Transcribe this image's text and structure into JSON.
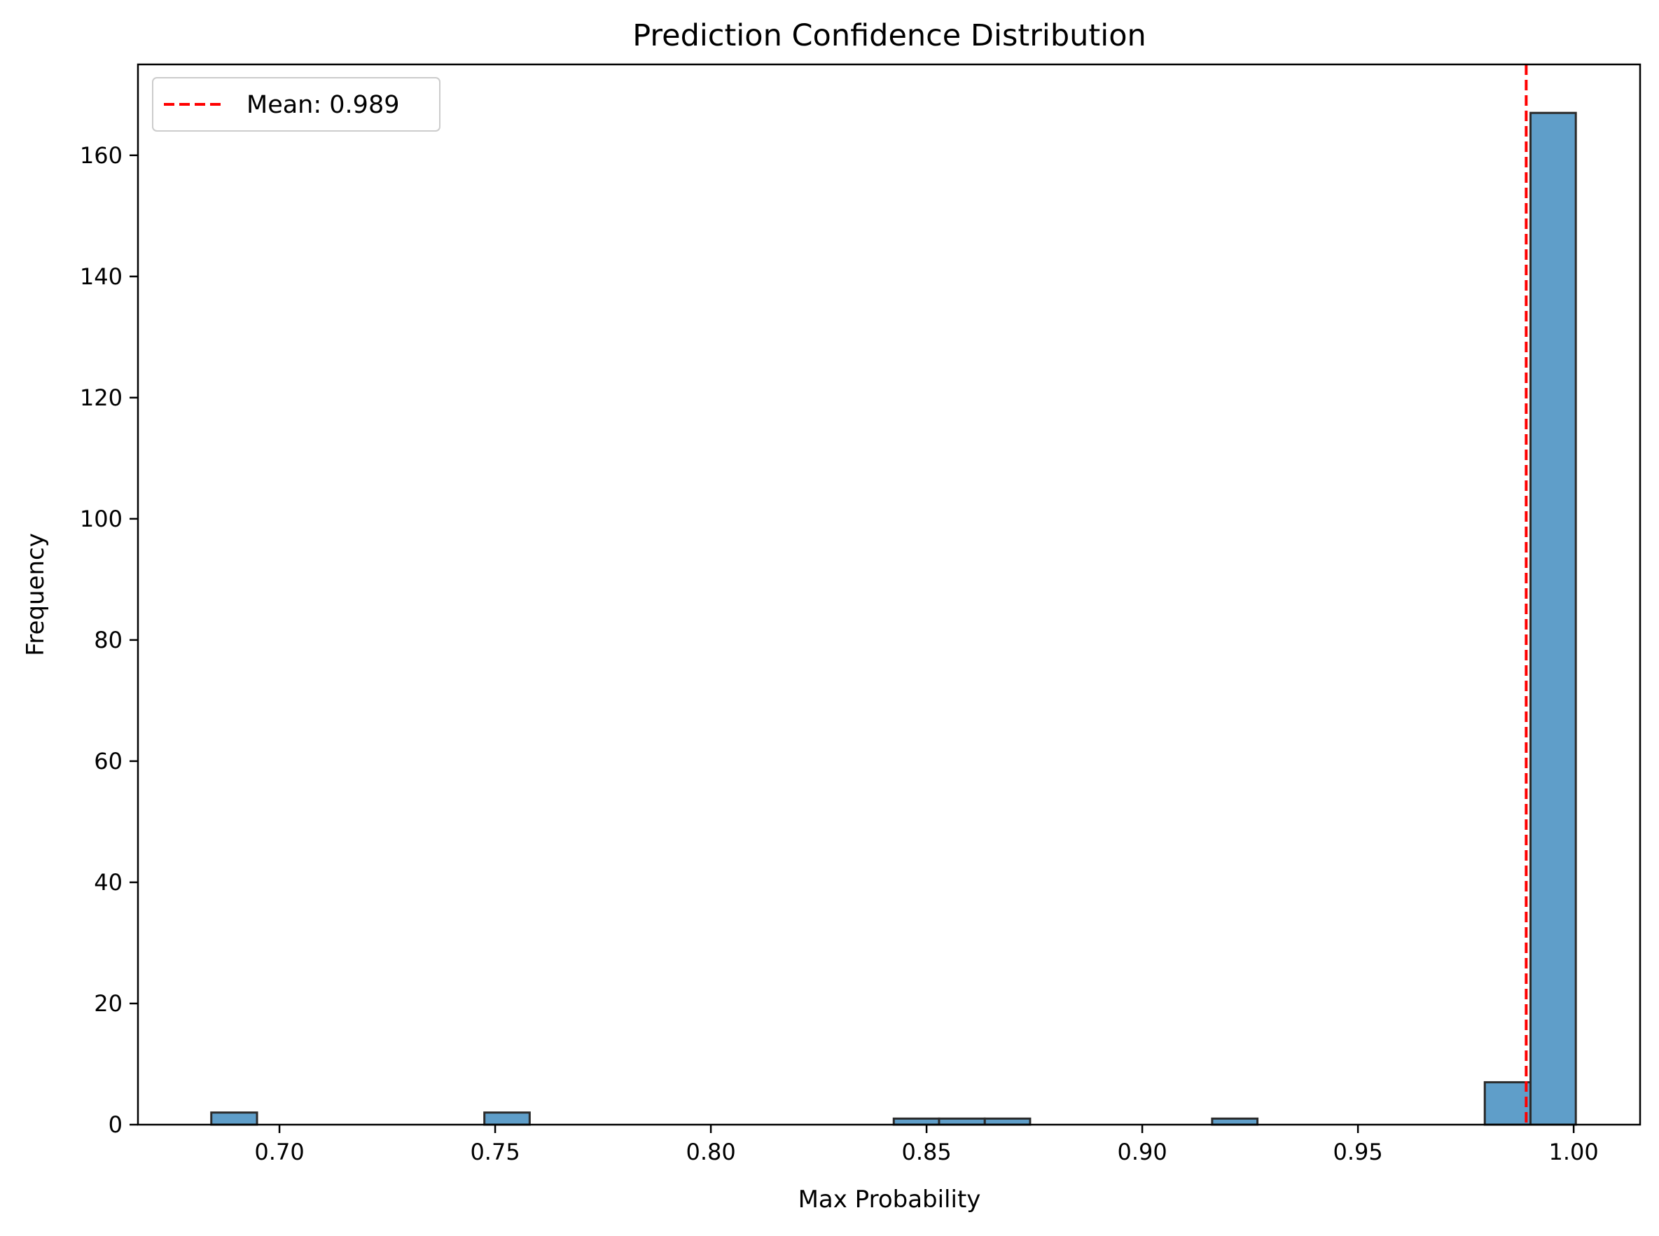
{
  "chart_data": {
    "type": "bar",
    "title": "Prediction Confidence Distribution",
    "xlabel": "Max Probability",
    "ylabel": "Frequency",
    "xlim": [
      0.6672,
      1.0154
    ],
    "ylim": [
      0,
      175
    ],
    "x_ticks": [
      0.7,
      0.75,
      0.8,
      0.85,
      0.9,
      0.95,
      1.0
    ],
    "x_tick_labels": [
      "0.70",
      "0.75",
      "0.80",
      "0.85",
      "0.90",
      "0.95",
      "1.00"
    ],
    "y_ticks": [
      0,
      20,
      40,
      60,
      80,
      100,
      120,
      140,
      160
    ],
    "y_tick_labels": [
      "0",
      "20",
      "40",
      "60",
      "80",
      "100",
      "120",
      "140",
      "160"
    ],
    "bin_edges": [
      0.6842,
      0.6948,
      0.7053,
      0.7159,
      0.7264,
      0.737,
      0.7475,
      0.758,
      0.7686,
      0.7791,
      0.7897,
      0.8002,
      0.8108,
      0.8213,
      0.8318,
      0.8424,
      0.8529,
      0.8635,
      0.874,
      0.8846,
      0.8951,
      0.9056,
      0.9162,
      0.9267,
      0.9373,
      0.9478,
      0.9584,
      0.9689,
      0.9794,
      0.99,
      1.0005
    ],
    "values": [
      2,
      0,
      0,
      0,
      0,
      0,
      2,
      0,
      0,
      0,
      0,
      0,
      0,
      0,
      0,
      1,
      1,
      1,
      0,
      0,
      0,
      0,
      1,
      0,
      0,
      0,
      0,
      0,
      7,
      167
    ],
    "bar_color": "#5f9ec9",
    "bar_edge_color": "#2b2b2b",
    "grid": false,
    "mean_line": {
      "x": 0.989,
      "color": "#ff0000",
      "style": "dashed"
    },
    "legend": {
      "placement": "top-left",
      "entries": [
        "Mean: 0.989"
      ]
    }
  }
}
